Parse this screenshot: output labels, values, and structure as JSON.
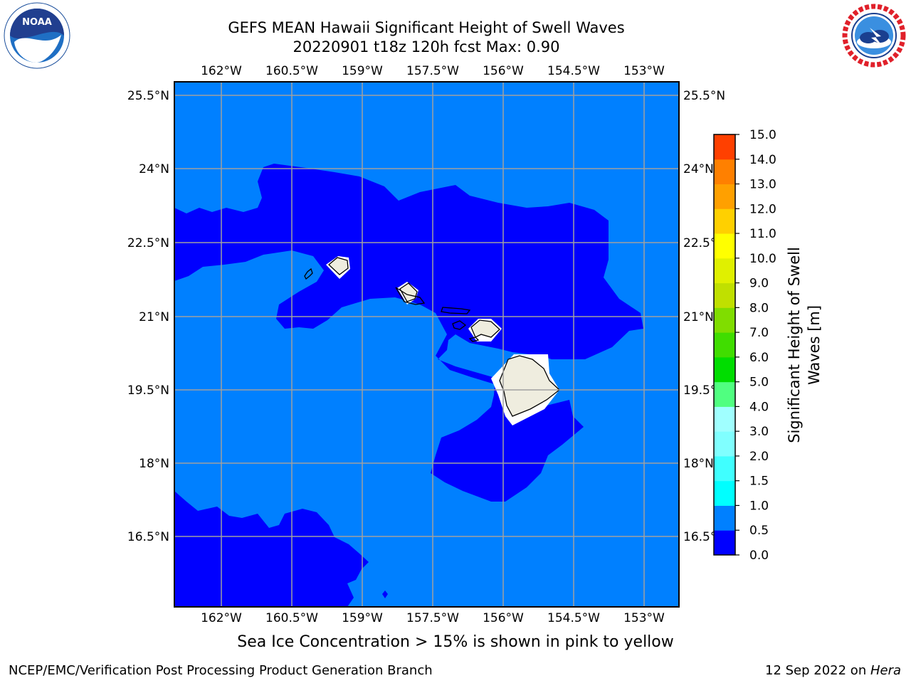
{
  "title": {
    "line1": "GEFS MEAN Hawaii Significant Height of Swell Waves",
    "line2": "20220901 t18z 120h fcst   Max: 0.90"
  },
  "logos": {
    "left": "noaa-logo",
    "right": "nws-logo"
  },
  "map": {
    "region": "Hawaii",
    "lon_labels": [
      "162°W",
      "160.5°W",
      "159°W",
      "157.5°W",
      "156°W",
      "154.5°W",
      "153°W"
    ],
    "lat_labels": [
      "25.5°N",
      "24°N",
      "22.5°N",
      "21°N",
      "19.5°N",
      "18°N",
      "16.5°N"
    ],
    "colors": {
      "ocean_low": "#0000ff",
      "ocean_mid": "#0080ff",
      "land": "#efeddf",
      "grid": "#a0a0a0"
    }
  },
  "colorbar": {
    "label": "Significant Height of Swell Waves [m]",
    "label_line1": "Significant Height of Swell",
    "label_line2": "Waves [m]",
    "ticks": [
      "0.0",
      "0.5",
      "1.0",
      "1.5",
      "2.0",
      "3.0",
      "4.0",
      "5.0",
      "6.0",
      "7.0",
      "8.0",
      "9.0",
      "10.0",
      "11.0",
      "12.0",
      "13.0",
      "14.0",
      "15.0"
    ],
    "colors": [
      "#0000ff",
      "#0080ff",
      "#00ffff",
      "#40ffff",
      "#80ffff",
      "#a0ffff",
      "#50ff80",
      "#00dd00",
      "#40dd00",
      "#80dd00",
      "#c0e000",
      "#e0f000",
      "#ffff00",
      "#ffd000",
      "#ffa000",
      "#ff8000",
      "#ff4000",
      "#ff0000"
    ]
  },
  "note": "Sea Ice Concentration > 15% is shown in pink to yellow",
  "footer": {
    "left": "NCEP/EMC/Verification Post Processing Product Generation Branch",
    "date": "12 Sep 2022 on ",
    "host": "Hera"
  }
}
